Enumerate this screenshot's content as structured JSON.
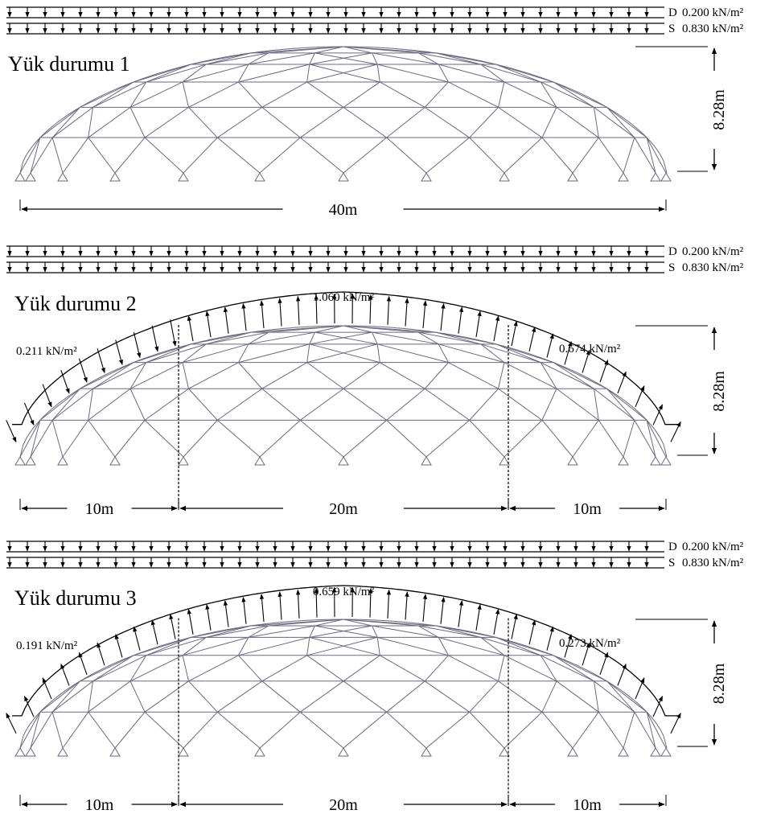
{
  "panels": [
    {
      "title": "Yük durumu 1",
      "loads": [
        {
          "code": "D",
          "value": "0.200 kN/m²"
        },
        {
          "code": "S",
          "value": "0.830 kN/m²"
        }
      ],
      "height": "8.28m",
      "spans": [
        "40m"
      ]
    },
    {
      "title": "Yük durumu 2",
      "loads": [
        {
          "code": "D",
          "value": "0.200 kN/m²"
        },
        {
          "code": "S",
          "value": "0.830 kN/m²"
        }
      ],
      "wind": [
        "0.211 kN/m²",
        "1.060 kN/m²",
        "0.674 kN/m²"
      ],
      "height": "8.28m",
      "spans": [
        "10m",
        "20m",
        "10m"
      ]
    },
    {
      "title": "Yük durumu 3",
      "loads": [
        {
          "code": "D",
          "value": "0.200 kN/m²"
        },
        {
          "code": "S",
          "value": "0.830 kN/m²"
        }
      ],
      "wind": [
        "0.191 kN/m²",
        "0.659 kN/m²",
        "0.273 kN/m²"
      ],
      "height": "8.28m",
      "spans": [
        "10m",
        "20m",
        "10m"
      ]
    }
  ]
}
